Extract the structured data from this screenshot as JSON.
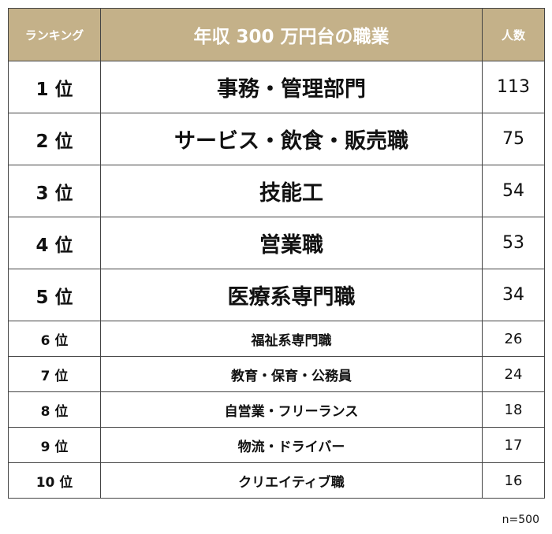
{
  "chart_data": {
    "type": "table",
    "title": "年収 300 万円台の職業",
    "headers": [
      "ランキング",
      "年収 300 万円台の職業",
      "人数"
    ],
    "rows": [
      {
        "rank": "1 位",
        "job": "事務・管理部門",
        "count": 113
      },
      {
        "rank": "2 位",
        "job": "サービス・飲食・販売職",
        "count": 75
      },
      {
        "rank": "3 位",
        "job": "技能工",
        "count": 54
      },
      {
        "rank": "4 位",
        "job": "営業職",
        "count": 53
      },
      {
        "rank": "5 位",
        "job": "医療系専門職",
        "count": 34
      },
      {
        "rank": "6 位",
        "job": "福祉系専門職",
        "count": 26
      },
      {
        "rank": "7 位",
        "job": "教育・保育・公務員",
        "count": 24
      },
      {
        "rank": "8 位",
        "job": "自営業・フリーランス",
        "count": 18
      },
      {
        "rank": "9 位",
        "job": "物流・ドライバー",
        "count": 17
      },
      {
        "rank": "10 位",
        "job": "クリエイティブ職",
        "count": 16
      }
    ],
    "note": "n=500"
  },
  "colors": {
    "header_bg": "#c4b189",
    "header_text": "#ffffff",
    "border": "#444444"
  }
}
